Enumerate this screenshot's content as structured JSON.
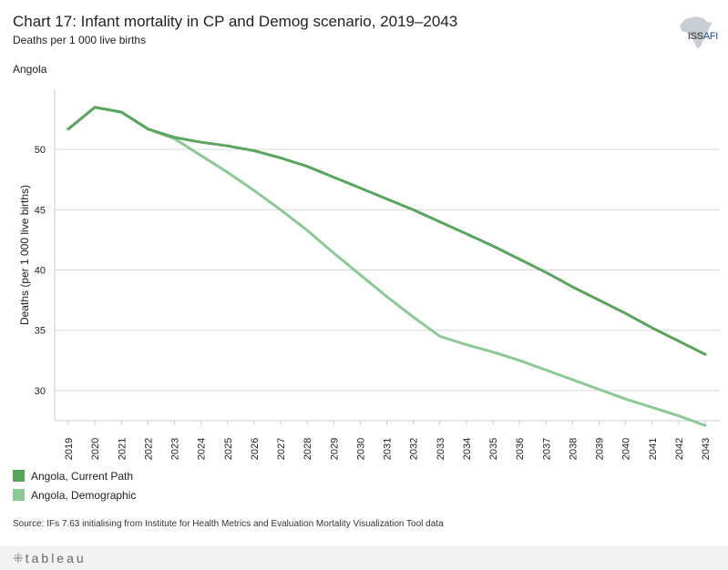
{
  "header": {
    "title": "Chart 17: Infant mortality in CP and Demog scenario, 2019–2043",
    "subtitle": "Deaths per 1 000 live births",
    "country": "Angola"
  },
  "logo": {
    "main": "ISS",
    "accent": "AFI"
  },
  "colors": {
    "current_path": "#59a55e",
    "demographic": "#8dc996",
    "grid": "#d9d9d9"
  },
  "chart_data": {
    "type": "line",
    "title": "Chart 17: Infant mortality in CP and Demog scenario, 2019–2043",
    "xlabel": "",
    "ylabel": "Deaths (per 1 000 live births)",
    "ylim": [
      27.5,
      55
    ],
    "yticks": [
      30,
      35,
      40,
      45,
      50
    ],
    "x": [
      "2019",
      "2020",
      "2021",
      "2022",
      "2023",
      "2024",
      "2025",
      "2026",
      "2027",
      "2028",
      "2029",
      "2030",
      "2031",
      "2032",
      "2033",
      "2034",
      "2035",
      "2036",
      "2037",
      "2038",
      "2039",
      "2040",
      "2041",
      "2042",
      "2043"
    ],
    "series": [
      {
        "name": "Angola,  Current Path",
        "values": [
          51.7,
          53.5,
          53.1,
          51.7,
          51.0,
          50.6,
          50.3,
          49.9,
          49.3,
          48.6,
          47.7,
          46.8,
          45.9,
          45.0,
          44.0,
          43.0,
          42.0,
          40.9,
          39.8,
          38.6,
          37.5,
          36.4,
          35.2,
          34.1,
          33.0
        ]
      },
      {
        "name": "Angola,  Demographic",
        "values": [
          51.7,
          53.5,
          53.1,
          51.7,
          50.9,
          49.5,
          48.1,
          46.6,
          45.0,
          43.3,
          41.4,
          39.6,
          37.8,
          36.1,
          34.5,
          33.8,
          33.2,
          32.5,
          31.7,
          30.9,
          30.1,
          29.3,
          28.6,
          27.9,
          27.1
        ]
      }
    ],
    "grid": true,
    "legend": "bottom-left"
  },
  "legend": {
    "items": [
      {
        "label": "Angola,  Current Path"
      },
      {
        "label": "Angola,  Demographic"
      }
    ]
  },
  "source": "Source: IFs 7.63 initialising from Institute for Health Metrics and Evaluation Mortality Visualization Tool data",
  "footer": {
    "brand": "tableau"
  }
}
